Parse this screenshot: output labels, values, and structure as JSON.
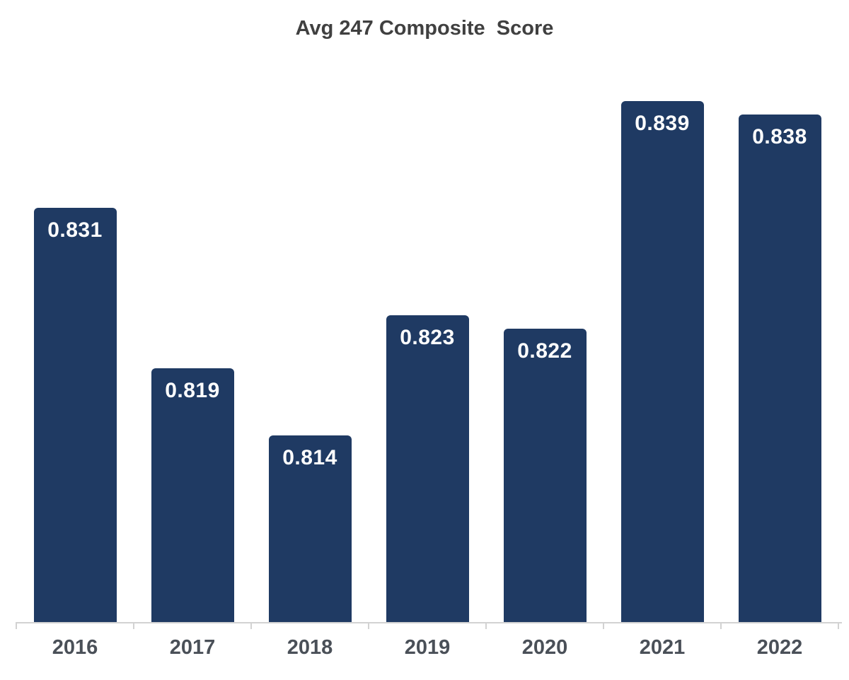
{
  "chart_data": {
    "type": "bar",
    "title": "Avg 247 Composite  Score",
    "categories": [
      "2016",
      "2017",
      "2018",
      "2019",
      "2020",
      "2021",
      "2022"
    ],
    "values": [
      0.831,
      0.819,
      0.814,
      0.823,
      0.822,
      0.839,
      0.838
    ],
    "value_labels": [
      "0.831",
      "0.819",
      "0.814",
      "0.823",
      "0.822",
      "0.839",
      "0.838"
    ],
    "xlabel": "",
    "ylabel": "",
    "ylim": [
      0.8,
      0.84
    ],
    "grid": false,
    "legend": "none",
    "value_label_position": "inside-top"
  },
  "style": {
    "bar_color": "#1f3a63",
    "bar_label_color": "#ffffff",
    "title_color": "#404040",
    "axis_label_color": "#4a5058",
    "axis_line_color": "#d2d2d2",
    "background_color": "#ffffff"
  }
}
